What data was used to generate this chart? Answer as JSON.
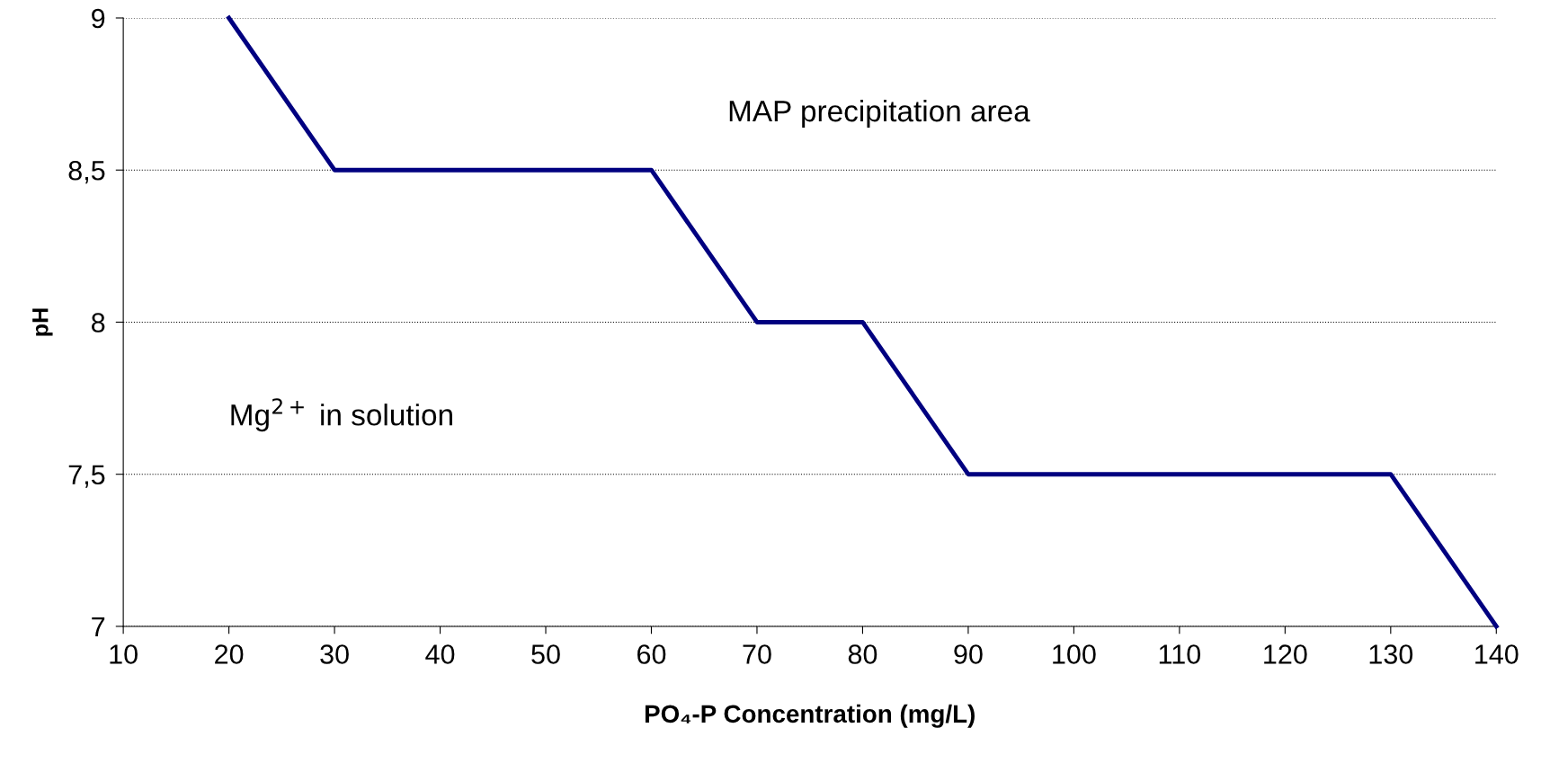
{
  "chart_data": {
    "type": "line",
    "xlabel": "PO₄-P Concentration (mg/L)",
    "ylabel": "pH",
    "x": [
      20,
      30,
      40,
      50,
      60,
      70,
      80,
      90,
      100,
      110,
      120,
      130,
      140
    ],
    "series": [
      {
        "color": "#000080",
        "values": [
          9,
          8.5,
          8.5,
          8.5,
          8.5,
          8,
          8,
          7.5,
          7.5,
          7.5,
          7.5,
          7.5,
          7
        ]
      }
    ],
    "xlim": [
      10,
      140
    ],
    "xticks": [
      10,
      20,
      30,
      40,
      50,
      60,
      70,
      80,
      90,
      100,
      110,
      120,
      130,
      140
    ],
    "ylim": [
      7,
      9
    ],
    "yticks": [
      7,
      {
        "value": 7.5,
        "label": "7,5"
      },
      8,
      {
        "value": 8.5,
        "label": "8,5"
      },
      9
    ],
    "grid": "y",
    "legend": false,
    "marker": "none",
    "line_style": "solid",
    "annotations": [
      "MAP precipitation area",
      "Mg$^{2+}$ in solution"
    ]
  }
}
